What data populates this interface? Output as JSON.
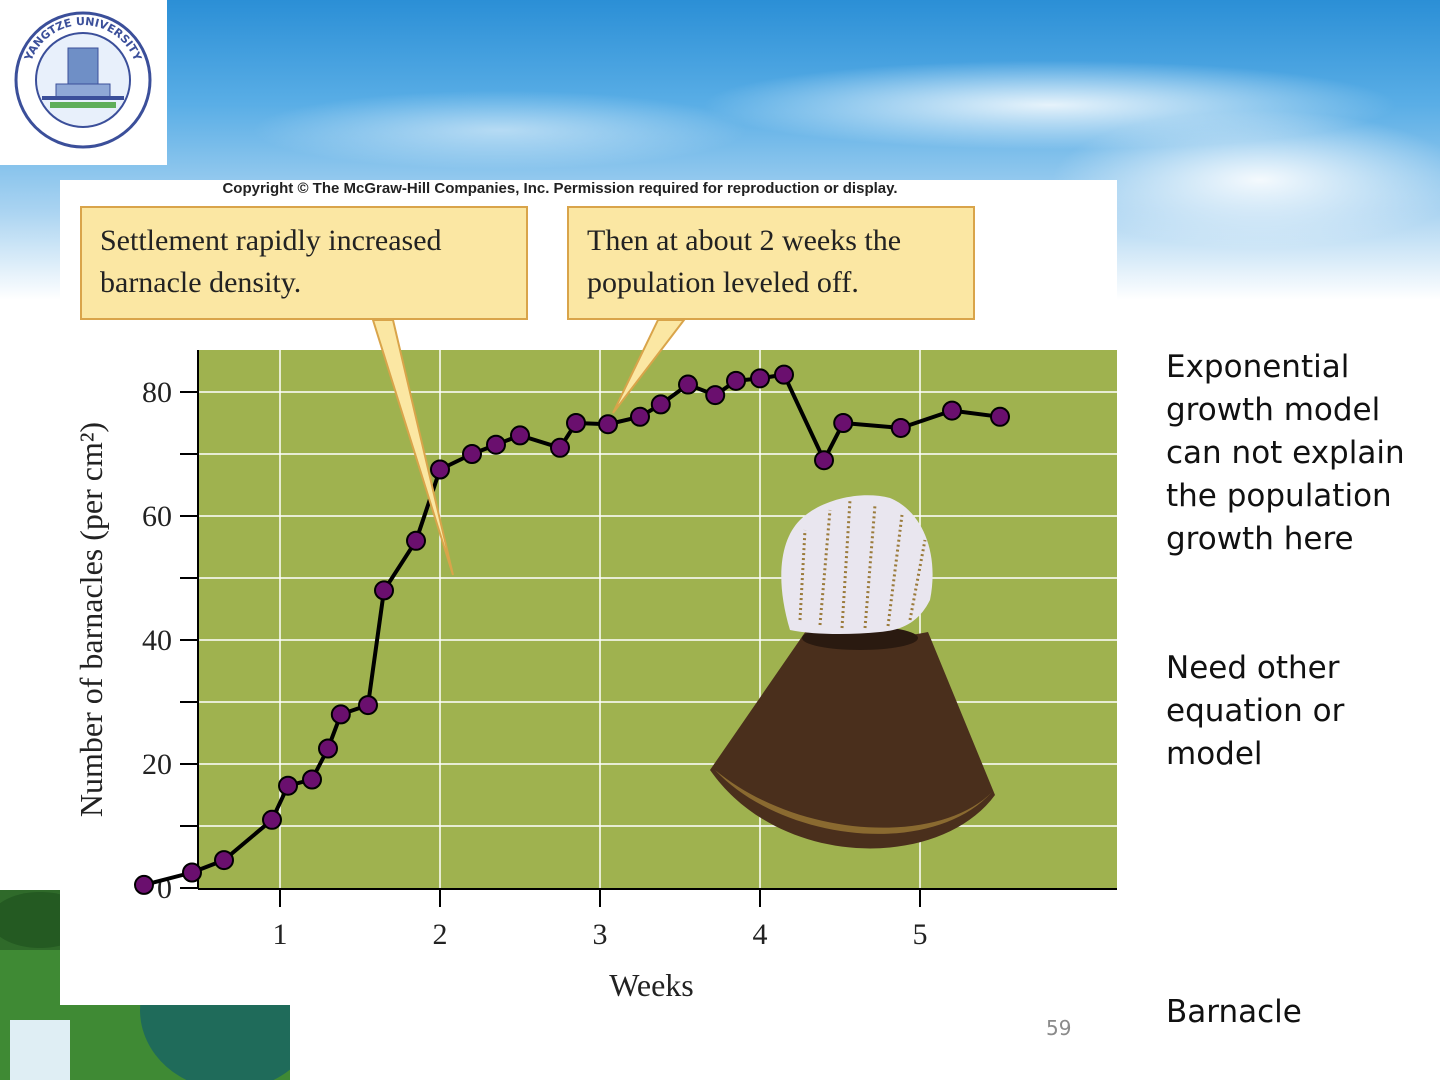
{
  "slide": {
    "copyright": "Copyright © The McGraw-Hill Companies, Inc. Permission required for reproduction or display.",
    "callouts": [
      "Settlement rapidly increased barnacle density.",
      "Then at about 2 weeks the population leveled off."
    ],
    "side_text": [
      "Exponential growth model can not explain the population growth here",
      "Need other equation or model"
    ],
    "image_label": "Barnacle",
    "page_number": "59",
    "logo": {
      "text": "YANGTZE UNIVERSITY",
      "icon": "university-seal-icon"
    },
    "colors": {
      "plot_bg": "#9fb24f",
      "marker": "#6a0f6e",
      "line": "#000000",
      "callout_bg": "#fbe7a3",
      "callout_border": "#d9a44a"
    }
  },
  "chart_data": {
    "type": "line",
    "title": "",
    "xlabel": "Weeks",
    "ylabel": "Number of barnacles (per cm²)",
    "xlim": [
      0,
      5.55
    ],
    "ylim": [
      0,
      85
    ],
    "xticks": [
      1,
      2,
      3,
      4,
      5
    ],
    "yticks": [
      0,
      20,
      40,
      60,
      80
    ],
    "y_minor_ticks": [
      10,
      30,
      50,
      70
    ],
    "grid": true,
    "series": [
      {
        "x": [
          0.15,
          0.45,
          0.65,
          0.95,
          1.05,
          1.2,
          1.3,
          1.38,
          1.55,
          1.65,
          1.85,
          2.0,
          2.2,
          2.35,
          2.5,
          2.75,
          2.85,
          3.05,
          3.25,
          3.38,
          3.55,
          3.72,
          3.85,
          4.0,
          4.15,
          4.4,
          4.52,
          4.88,
          5.2,
          5.5
        ],
        "y": [
          0.5,
          2.5,
          4.5,
          11,
          16.5,
          17.5,
          22.5,
          28,
          29.5,
          48,
          56,
          67.5,
          70,
          71.5,
          73,
          71,
          75,
          74.8,
          76,
          78,
          81.2,
          79.5,
          81.8,
          82.2,
          82.8,
          69,
          75,
          74.2,
          77,
          76
        ]
      }
    ]
  }
}
